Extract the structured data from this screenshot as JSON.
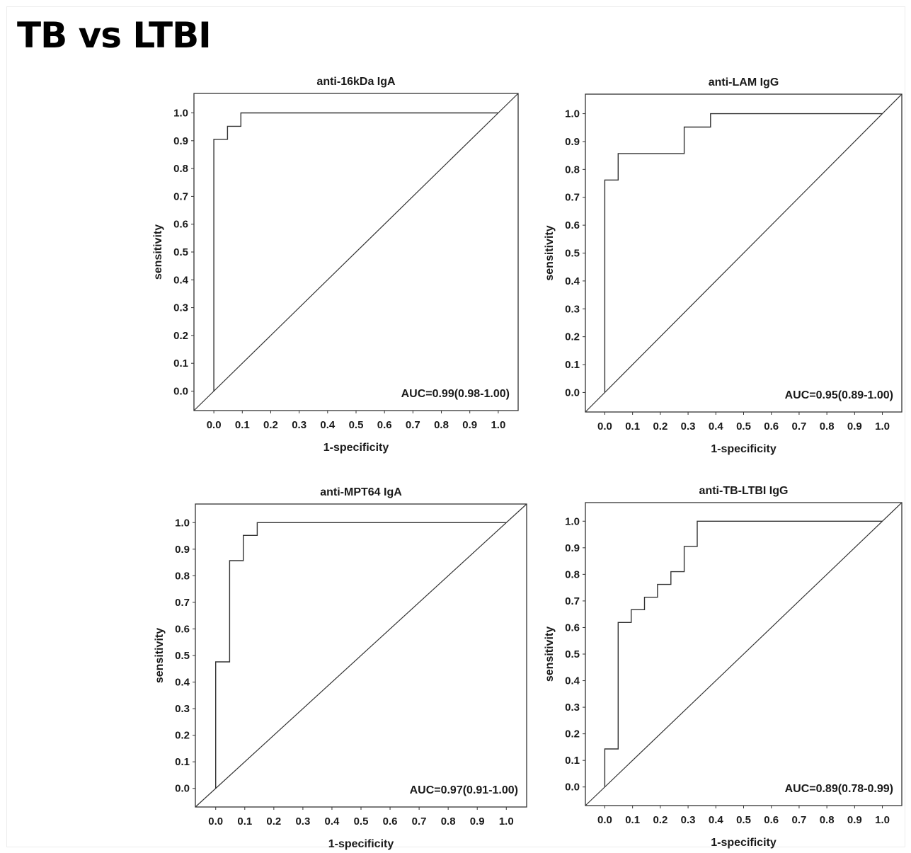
{
  "page_title": "TB vs LTBI",
  "axis_text": {
    "xlabel": "1-specificity",
    "ylabel": "sensitivity"
  },
  "colors": {
    "line": "#333333",
    "background": "#ffffff",
    "text": "#1a1a1a"
  },
  "chart_data": [
    {
      "type": "line",
      "title": "anti-16kDa IgA",
      "xlabel": "1-specificity",
      "ylabel": "sensitivity",
      "xlim": [
        -0.07,
        1.07
      ],
      "ylim": [
        -0.07,
        1.07
      ],
      "ticks": [
        "0.0",
        "0.1",
        "0.2",
        "0.3",
        "0.4",
        "0.5",
        "0.6",
        "0.7",
        "0.8",
        "0.9",
        "1.0"
      ],
      "grid": false,
      "annotation": "AUC=0.99(0.98-1.00)",
      "roc": [
        [
          0,
          0
        ],
        [
          0,
          0.905
        ],
        [
          0.048,
          0.905
        ],
        [
          0.048,
          0.952
        ],
        [
          0.095,
          0.952
        ],
        [
          0.095,
          1.0
        ],
        [
          1.0,
          1.0
        ]
      ],
      "reference_line": [
        [
          -0.07,
          -0.07
        ],
        [
          1.07,
          1.07
        ]
      ]
    },
    {
      "type": "line",
      "title": "anti-LAM IgG",
      "xlabel": "1-specificity",
      "ylabel": "sensitivity",
      "xlim": [
        -0.07,
        1.07
      ],
      "ylim": [
        -0.07,
        1.07
      ],
      "ticks": [
        "0.0",
        "0.1",
        "0.2",
        "0.3",
        "0.4",
        "0.5",
        "0.6",
        "0.7",
        "0.8",
        "0.9",
        "1.0"
      ],
      "grid": false,
      "annotation": "AUC=0.95(0.89-1.00)",
      "roc": [
        [
          0,
          0
        ],
        [
          0,
          0.762
        ],
        [
          0.048,
          0.762
        ],
        [
          0.048,
          0.857
        ],
        [
          0.286,
          0.857
        ],
        [
          0.286,
          0.952
        ],
        [
          0.381,
          0.952
        ],
        [
          0.381,
          1.0
        ],
        [
          1.0,
          1.0
        ]
      ],
      "reference_line": [
        [
          -0.07,
          -0.07
        ],
        [
          1.07,
          1.07
        ]
      ]
    },
    {
      "type": "line",
      "title": "anti-MPT64 IgA",
      "xlabel": "1-specificity",
      "ylabel": "sensitivity",
      "xlim": [
        -0.07,
        1.07
      ],
      "ylim": [
        -0.07,
        1.07
      ],
      "ticks": [
        "0.0",
        "0.1",
        "0.2",
        "0.3",
        "0.4",
        "0.5",
        "0.6",
        "0.7",
        "0.8",
        "0.9",
        "1.0"
      ],
      "grid": false,
      "annotation": "AUC=0.97(0.91-1.00)",
      "roc": [
        [
          0,
          0
        ],
        [
          0,
          0.476
        ],
        [
          0.048,
          0.476
        ],
        [
          0.048,
          0.857
        ],
        [
          0.095,
          0.857
        ],
        [
          0.095,
          0.952
        ],
        [
          0.143,
          0.952
        ],
        [
          0.143,
          1.0
        ],
        [
          1.0,
          1.0
        ]
      ],
      "reference_line": [
        [
          -0.07,
          -0.07
        ],
        [
          1.07,
          1.07
        ]
      ]
    },
    {
      "type": "line",
      "title": "anti-TB-LTBI IgG",
      "xlabel": "1-specificity",
      "ylabel": "sensitivity",
      "xlim": [
        -0.07,
        1.07
      ],
      "ylim": [
        -0.07,
        1.07
      ],
      "ticks": [
        "0.0",
        "0.1",
        "0.2",
        "0.3",
        "0.4",
        "0.5",
        "0.6",
        "0.7",
        "0.8",
        "0.9",
        "1.0"
      ],
      "grid": false,
      "annotation": "AUC=0.89(0.78-0.99)",
      "roc": [
        [
          0,
          0
        ],
        [
          0,
          0.143
        ],
        [
          0.048,
          0.143
        ],
        [
          0.048,
          0.619
        ],
        [
          0.095,
          0.619
        ],
        [
          0.095,
          0.667
        ],
        [
          0.143,
          0.667
        ],
        [
          0.143,
          0.714
        ],
        [
          0.19,
          0.714
        ],
        [
          0.19,
          0.762
        ],
        [
          0.238,
          0.762
        ],
        [
          0.238,
          0.81
        ],
        [
          0.286,
          0.81
        ],
        [
          0.286,
          0.905
        ],
        [
          0.333,
          0.905
        ],
        [
          0.333,
          1.0
        ],
        [
          1.0,
          1.0
        ]
      ],
      "reference_line": [
        [
          -0.07,
          -0.07
        ],
        [
          1.07,
          1.07
        ]
      ]
    }
  ]
}
